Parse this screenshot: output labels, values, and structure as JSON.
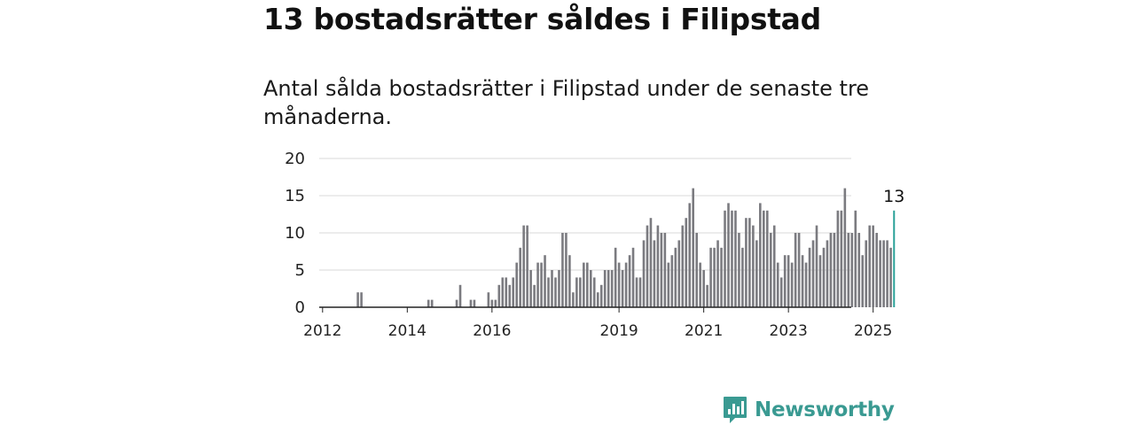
{
  "header": {
    "title": "13 bostadsrätter såldes i Filipstad",
    "subtitle": "Antal sålda bostadsrätter i Filipstad under de senaste tre månaderna."
  },
  "brand": {
    "name": "Newsworthy",
    "color": "#3a9a92"
  },
  "colors": {
    "bar": "#7b7b80",
    "highlight": "#2aa198",
    "grid": "#d9d9d9",
    "axis": "#222222"
  },
  "chart_data": {
    "type": "bar",
    "title": "13 bostadsrätter såldes i Filipstad",
    "subtitle": "Antal sålda bostadsrätter i Filipstad under de senaste tre månaderna.",
    "xlabel": "",
    "ylabel": "",
    "ylim": [
      0,
      20
    ],
    "yticks": [
      0,
      5,
      10,
      15,
      20
    ],
    "xticks": [
      "2012",
      "2014",
      "2016",
      "2019",
      "2021",
      "2023",
      "2025"
    ],
    "grid": true,
    "series": [
      {
        "values": [
          0,
          0,
          0,
          0,
          0,
          0,
          0,
          0,
          0,
          0,
          2,
          2,
          0,
          0,
          0,
          0,
          0,
          0,
          0,
          0,
          0,
          0,
          0,
          0,
          0,
          0,
          0,
          0,
          0,
          0,
          1,
          1,
          0,
          0,
          0,
          0,
          0,
          0,
          1,
          3,
          0,
          0,
          1,
          1,
          0,
          0,
          0,
          2,
          1,
          1,
          3,
          4,
          4,
          3,
          4,
          6,
          8,
          11,
          11,
          5,
          3,
          6,
          6,
          7,
          4,
          5,
          4,
          5,
          10,
          10,
          7,
          2,
          4,
          4,
          6,
          6,
          5,
          4,
          2,
          3,
          5,
          5,
          5,
          8,
          6,
          5,
          6,
          7,
          8,
          4,
          4,
          9,
          11,
          12,
          9,
          11,
          10,
          10,
          6,
          7,
          8,
          9,
          11,
          12,
          14,
          16,
          10,
          6,
          5,
          3,
          8,
          8,
          9,
          8,
          13,
          14,
          13,
          13,
          10,
          8,
          12,
          12,
          11,
          9,
          14,
          13,
          13,
          10,
          11,
          6,
          4,
          7,
          7,
          6,
          10,
          10,
          7,
          6,
          8,
          9,
          11,
          7,
          8,
          9,
          10,
          10,
          13,
          13,
          16,
          10,
          10,
          13,
          10,
          7,
          9,
          11,
          11,
          10,
          9,
          9,
          9,
          8,
          13
        ]
      }
    ],
    "highlight": {
      "value": 13,
      "label": "13"
    }
  }
}
